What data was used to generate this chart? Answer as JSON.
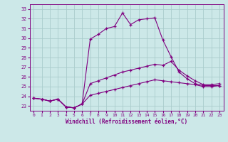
{
  "xlabel": "Windchill (Refroidissement éolien,°C)",
  "background_color": "#cce8e8",
  "line_color": "#800080",
  "grid_color": "#aacccc",
  "x_ticks": [
    0,
    1,
    2,
    3,
    4,
    5,
    6,
    7,
    8,
    9,
    10,
    11,
    12,
    13,
    14,
    15,
    16,
    17,
    18,
    19,
    20,
    21,
    22,
    23
  ],
  "y_ticks": [
    23,
    24,
    25,
    26,
    27,
    28,
    29,
    30,
    31,
    32,
    33
  ],
  "xlim": [
    -0.5,
    23.5
  ],
  "ylim": [
    22.5,
    33.5
  ],
  "top_x": [
    0,
    1,
    2,
    3,
    4,
    5,
    6,
    7,
    8,
    9,
    10,
    11,
    12,
    13,
    14,
    15,
    16,
    17,
    18,
    19,
    20,
    21,
    22,
    23
  ],
  "top_y": [
    23.8,
    23.7,
    23.5,
    23.7,
    22.9,
    22.8,
    23.2,
    29.9,
    30.4,
    31.0,
    31.2,
    32.6,
    31.4,
    31.9,
    32.0,
    32.1,
    29.8,
    28.1,
    26.5,
    25.8,
    25.3,
    25.1,
    25.1,
    25.1
  ],
  "mid_x": [
    0,
    1,
    2,
    3,
    4,
    5,
    6,
    7,
    8,
    9,
    10,
    11,
    12,
    13,
    14,
    15,
    16,
    17,
    18,
    19,
    20,
    21,
    22,
    23
  ],
  "mid_y": [
    23.8,
    23.7,
    23.5,
    23.7,
    22.9,
    22.8,
    23.2,
    25.3,
    25.6,
    25.9,
    26.2,
    26.5,
    26.7,
    26.9,
    27.1,
    27.3,
    27.2,
    27.6,
    26.7,
    26.1,
    25.6,
    25.2,
    25.2,
    25.3
  ],
  "bot_x": [
    0,
    1,
    2,
    3,
    4,
    5,
    6,
    7,
    8,
    9,
    10,
    11,
    12,
    13,
    14,
    15,
    16,
    17,
    18,
    19,
    20,
    21,
    22,
    23
  ],
  "bot_y": [
    23.8,
    23.7,
    23.5,
    23.7,
    22.9,
    22.8,
    23.2,
    24.1,
    24.3,
    24.5,
    24.7,
    24.9,
    25.1,
    25.3,
    25.5,
    25.7,
    25.6,
    25.5,
    25.4,
    25.3,
    25.2,
    25.0,
    25.0,
    25.1
  ]
}
